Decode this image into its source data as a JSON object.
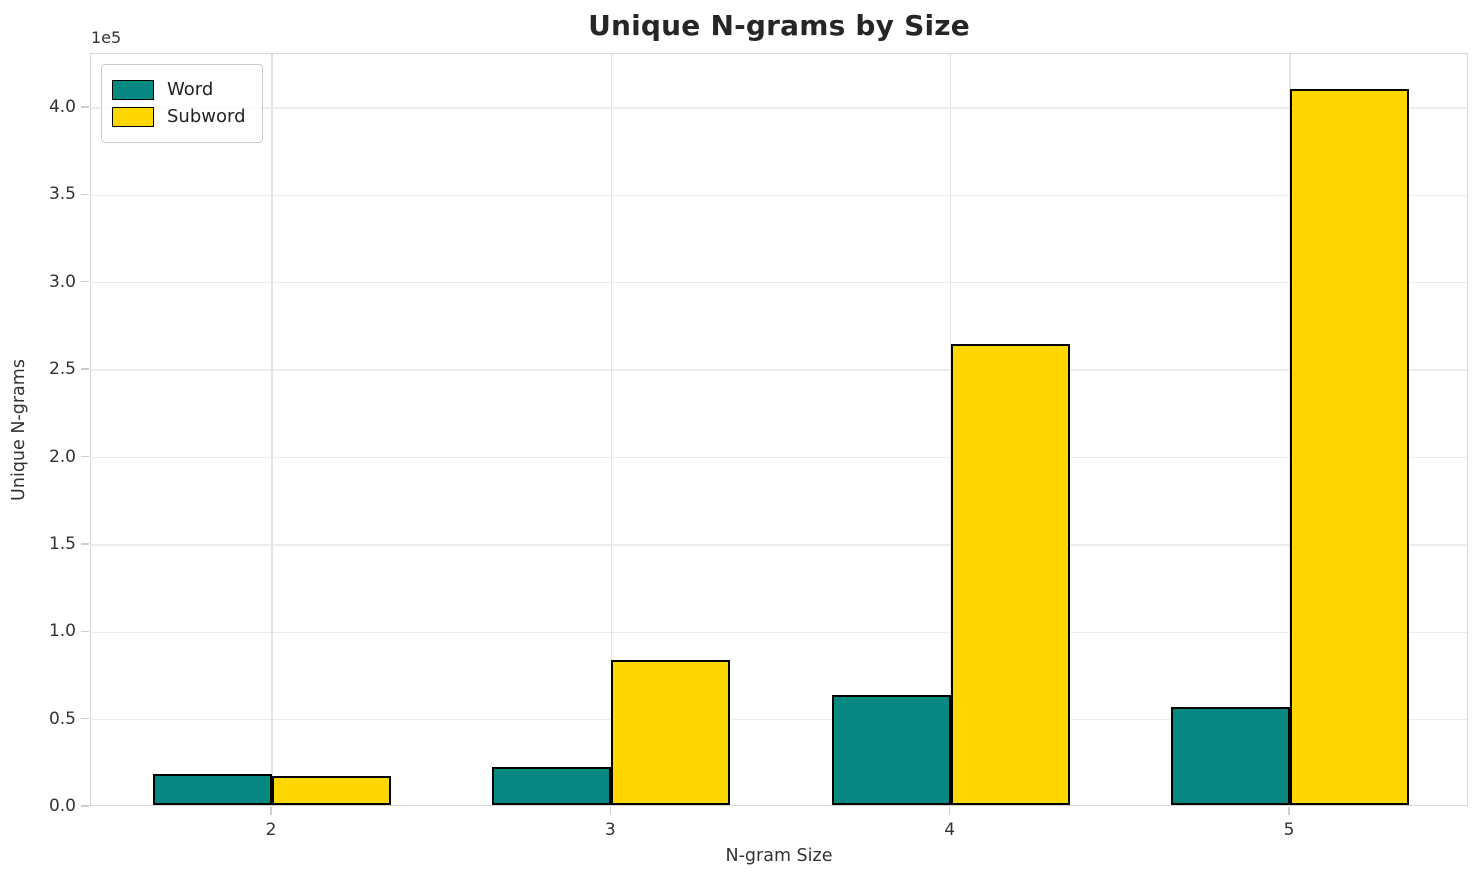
{
  "figure": {
    "title": "Unique N-grams by Size",
    "xlabel": "N-gram Size",
    "ylabel": "Unique N-grams",
    "offset_text": "1e5"
  },
  "legend": {
    "position": "upper-left",
    "items": [
      {
        "label": "Word",
        "color": "#068782"
      },
      {
        "label": "Subword",
        "color": "#ffd700"
      }
    ]
  },
  "axes": {
    "y_ticks": [
      {
        "value": 0,
        "label": "0.0"
      },
      {
        "value": 50000,
        "label": "0.5"
      },
      {
        "value": 100000,
        "label": "1.0"
      },
      {
        "value": 150000,
        "label": "1.5"
      },
      {
        "value": 200000,
        "label": "2.0"
      },
      {
        "value": 250000,
        "label": "2.5"
      },
      {
        "value": 300000,
        "label": "3.0"
      },
      {
        "value": 350000,
        "label": "3.5"
      },
      {
        "value": 400000,
        "label": "4.0"
      }
    ],
    "x_ticks": [
      {
        "label": "2"
      },
      {
        "label": "3"
      },
      {
        "label": "4"
      },
      {
        "label": "5"
      }
    ]
  },
  "colors": {
    "word": "#068782",
    "subword": "#ffd700",
    "bar_edge": "#000000",
    "grid_h": "#ececec",
    "grid_v": "#e3e3e3",
    "spine": "#d5d5d5",
    "text": "#333333"
  },
  "chart_data": {
    "type": "bar",
    "categories": [
      "2",
      "3",
      "4",
      "5"
    ],
    "series": [
      {
        "name": "Word",
        "color": "#068782",
        "values": [
          18000,
          22000,
          63000,
          56000
        ]
      },
      {
        "name": "Subword",
        "color": "#ffd700",
        "values": [
          16500,
          83000,
          264000,
          410000
        ]
      }
    ],
    "title": "Unique N-grams by Size",
    "xlabel": "N-gram Size",
    "ylabel": "Unique N-grams",
    "ylim": [
      0,
      431000
    ],
    "y_offset_factor": "1e5",
    "grid": true,
    "legend_position": "upper left",
    "bar_edge_color": "#000000"
  }
}
